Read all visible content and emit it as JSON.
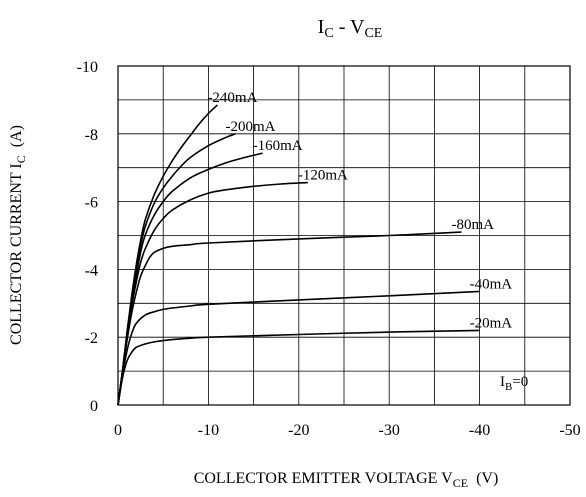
{
  "chart_data": {
    "type": "line",
    "title": {
      "main": "I",
      "sub": "C",
      "sep": " - V",
      "sub2": "CE"
    },
    "xlabel": {
      "main": "COLLECTOR EMITTER VOLTAGE V",
      "sub": "CE",
      "tail": "  (V)"
    },
    "ylabel": {
      "main": "COLLECTOR CURRENT I",
      "sub": "C",
      "tail": "  (A)"
    },
    "xlim": [
      0,
      -50
    ],
    "ylim": [
      0,
      -10
    ],
    "x_ticks": [
      {
        "value": 0,
        "label": "0"
      },
      {
        "value": -10,
        "label": "-10"
      },
      {
        "value": -20,
        "label": "-20"
      },
      {
        "value": -30,
        "label": "-30"
      },
      {
        "value": -40,
        "label": "-40"
      },
      {
        "value": -50,
        "label": "-50"
      }
    ],
    "y_ticks": [
      {
        "value": 0,
        "label": "0"
      },
      {
        "value": -2,
        "label": "-2"
      },
      {
        "value": -4,
        "label": "-4"
      },
      {
        "value": -6,
        "label": "-6"
      },
      {
        "value": -8,
        "label": "-8"
      },
      {
        "value": -10,
        "label": "-10"
      }
    ],
    "grid": true,
    "grid_x_step": -5,
    "grid_y_step": -1,
    "series": [
      {
        "name": "-20mA",
        "x": [
          0,
          -0.5,
          -1,
          -1.5,
          -2,
          -3,
          -4,
          -5,
          -6,
          -8,
          -10,
          -20,
          -30,
          -40
        ],
        "y": [
          0,
          -0.8,
          -1.3,
          -1.55,
          -1.7,
          -1.8,
          -1.86,
          -1.9,
          -1.93,
          -1.97,
          -2.0,
          -2.08,
          -2.15,
          -2.2
        ]
      },
      {
        "name": "-40mA",
        "x": [
          0,
          -0.5,
          -1,
          -1.5,
          -2,
          -3,
          -4,
          -5,
          -6,
          -8,
          -10,
          -20,
          -30,
          -40
        ],
        "y": [
          0,
          -0.9,
          -1.6,
          -2.1,
          -2.4,
          -2.65,
          -2.75,
          -2.82,
          -2.86,
          -2.92,
          -2.97,
          -3.1,
          -3.22,
          -3.35
        ]
      },
      {
        "name": "-80mA",
        "x": [
          0,
          -0.5,
          -1,
          -1.5,
          -2,
          -2.5,
          -3,
          -3.5,
          -4,
          -5,
          -6,
          -8,
          -10,
          -20,
          -30,
          -38
        ],
        "y": [
          0,
          -1.0,
          -1.9,
          -2.7,
          -3.3,
          -3.8,
          -4.1,
          -4.35,
          -4.5,
          -4.62,
          -4.68,
          -4.73,
          -4.78,
          -4.9,
          -5.0,
          -5.1
        ]
      },
      {
        "name": "-120mA",
        "x": [
          0,
          -0.5,
          -1,
          -1.5,
          -2,
          -2.5,
          -3,
          -4,
          -5,
          -6,
          -8,
          -10,
          -12,
          -15,
          -18,
          -21
        ],
        "y": [
          0,
          -1.0,
          -2.0,
          -2.9,
          -3.6,
          -4.2,
          -4.6,
          -5.15,
          -5.5,
          -5.75,
          -6.05,
          -6.25,
          -6.35,
          -6.45,
          -6.52,
          -6.56
        ]
      },
      {
        "name": "-160mA",
        "x": [
          0,
          -0.5,
          -1,
          -1.5,
          -2,
          -2.5,
          -3,
          -4,
          -5,
          -6,
          -8,
          -10,
          -12,
          -14,
          -16
        ],
        "y": [
          0,
          -1.0,
          -2.05,
          -3.0,
          -3.8,
          -4.5,
          -5.0,
          -5.6,
          -6.0,
          -6.3,
          -6.7,
          -6.95,
          -7.15,
          -7.3,
          -7.43
        ]
      },
      {
        "name": "-200mA",
        "x": [
          0,
          -0.5,
          -1,
          -1.5,
          -2,
          -2.5,
          -3,
          -4,
          -5,
          -6,
          -7,
          -8,
          -10,
          -12,
          -13
        ],
        "y": [
          0,
          -1.0,
          -2.1,
          -3.1,
          -4.0,
          -4.7,
          -5.25,
          -5.95,
          -6.4,
          -6.75,
          -7.05,
          -7.3,
          -7.65,
          -7.9,
          -8.0
        ]
      },
      {
        "name": "-240mA",
        "x": [
          0,
          -0.5,
          -1,
          -1.5,
          -2,
          -2.5,
          -3,
          -4,
          -5,
          -6,
          -7,
          -8,
          -9,
          -10,
          -11
        ],
        "y": [
          0,
          -1.0,
          -2.15,
          -3.2,
          -4.1,
          -4.85,
          -5.45,
          -6.2,
          -6.75,
          -7.2,
          -7.6,
          -7.95,
          -8.3,
          -8.6,
          -8.85
        ]
      }
    ],
    "annotation": {
      "main": "I",
      "sub": "B",
      "tail": "=0"
    }
  }
}
